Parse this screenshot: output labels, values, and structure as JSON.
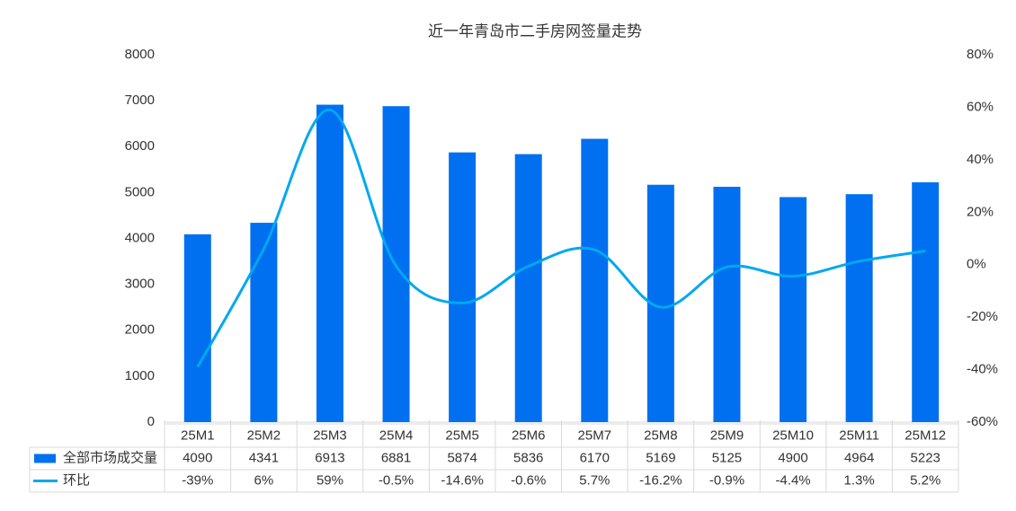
{
  "chart_data": {
    "type": "bar-line",
    "title": "近一年青岛市二手房网签量走势",
    "categories": [
      "25M1",
      "25M2",
      "25M3",
      "25M4",
      "25M5",
      "25M6",
      "25M7",
      "25M8",
      "25M9",
      "25M10",
      "25M11",
      "25M12"
    ],
    "series": [
      {
        "name": "全部市场成交量",
        "type": "bar",
        "color": "#0070f0",
        "values": [
          4090,
          4341,
          6913,
          6881,
          5874,
          5836,
          6170,
          5169,
          5125,
          4900,
          4964,
          5223
        ]
      },
      {
        "name": "环比",
        "type": "line",
        "axis": "y2",
        "color": "#00a8f0",
        "values": [
          -39,
          6,
          59,
          -0.5,
          -14.6,
          -0.6,
          5.7,
          -16.2,
          -0.9,
          -4.4,
          1.3,
          5.2
        ],
        "value_labels": [
          "-39%",
          "6%",
          "59%",
          "-0.5%",
          "-14.6%",
          "-0.6%",
          "5.7%",
          "-16.2%",
          "-0.9%",
          "-4.4%",
          "1.3%",
          "5.2%"
        ]
      }
    ],
    "ylim": [
      0,
      8000
    ],
    "yticks": [
      0,
      1000,
      2000,
      3000,
      4000,
      5000,
      6000,
      7000,
      8000
    ],
    "y2lim": [
      -60,
      80
    ],
    "y2ticks": [
      {
        "value": -60,
        "label": "-60%"
      },
      {
        "value": -40,
        "label": "-40%"
      },
      {
        "value": -20,
        "label": "-20%"
      },
      {
        "value": 0,
        "label": "0%"
      },
      {
        "value": 20,
        "label": "20%"
      },
      {
        "value": 40,
        "label": "40%"
      },
      {
        "value": 60,
        "label": "60%"
      },
      {
        "value": 80,
        "label": "80%"
      }
    ],
    "grid": false
  }
}
